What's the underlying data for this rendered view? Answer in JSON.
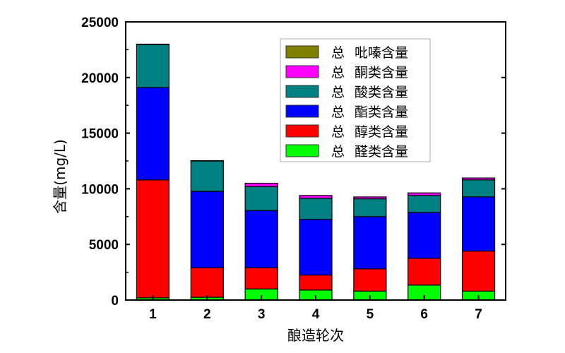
{
  "chart_data": {
    "type": "bar",
    "stacked": true,
    "title": "",
    "xlabel": "酿造轮次",
    "ylabel": "含量(mg/L)",
    "categories": [
      "1",
      "2",
      "3",
      "4",
      "5",
      "6",
      "7"
    ],
    "ylim": [
      0,
      25000
    ],
    "yticks": [
      0,
      5000,
      10000,
      15000,
      20000,
      25000
    ],
    "ytick_labels": [
      "0",
      "5000",
      "10000",
      "15000",
      "20000",
      "25000"
    ],
    "grid": false,
    "legend_position": "upper right (inside)",
    "series": [
      {
        "name": "总 醛类含量",
        "color": "#00ff00",
        "values": [
          200,
          250,
          1000,
          900,
          800,
          1350,
          800
        ]
      },
      {
        "name": "总 醇类含量",
        "color": "#ff0000",
        "values": [
          10600,
          2650,
          1900,
          1350,
          2000,
          2400,
          3600
        ]
      },
      {
        "name": "总 酯类含量",
        "color": "#0000ff",
        "values": [
          8300,
          6870,
          5150,
          5000,
          4700,
          4120,
          4880
        ]
      },
      {
        "name": "总 酸类含量",
        "color": "#008080",
        "values": [
          3870,
          2730,
          2150,
          1900,
          1600,
          1530,
          1520
        ]
      },
      {
        "name": "总 酮类含量",
        "color": "#ff00ff",
        "values": [
          0,
          0,
          300,
          250,
          170,
          230,
          170
        ]
      },
      {
        "name": "总 吡嗪含量",
        "color": "#808000",
        "values": [
          30,
          30,
          0,
          0,
          0,
          0,
          0
        ]
      }
    ],
    "legend_order": [
      "总 吡嗪含量",
      "总 酮类含量",
      "总 酸类含量",
      "总 酯类含量",
      "总 醇类含量",
      "总 醛类含量"
    ]
  }
}
